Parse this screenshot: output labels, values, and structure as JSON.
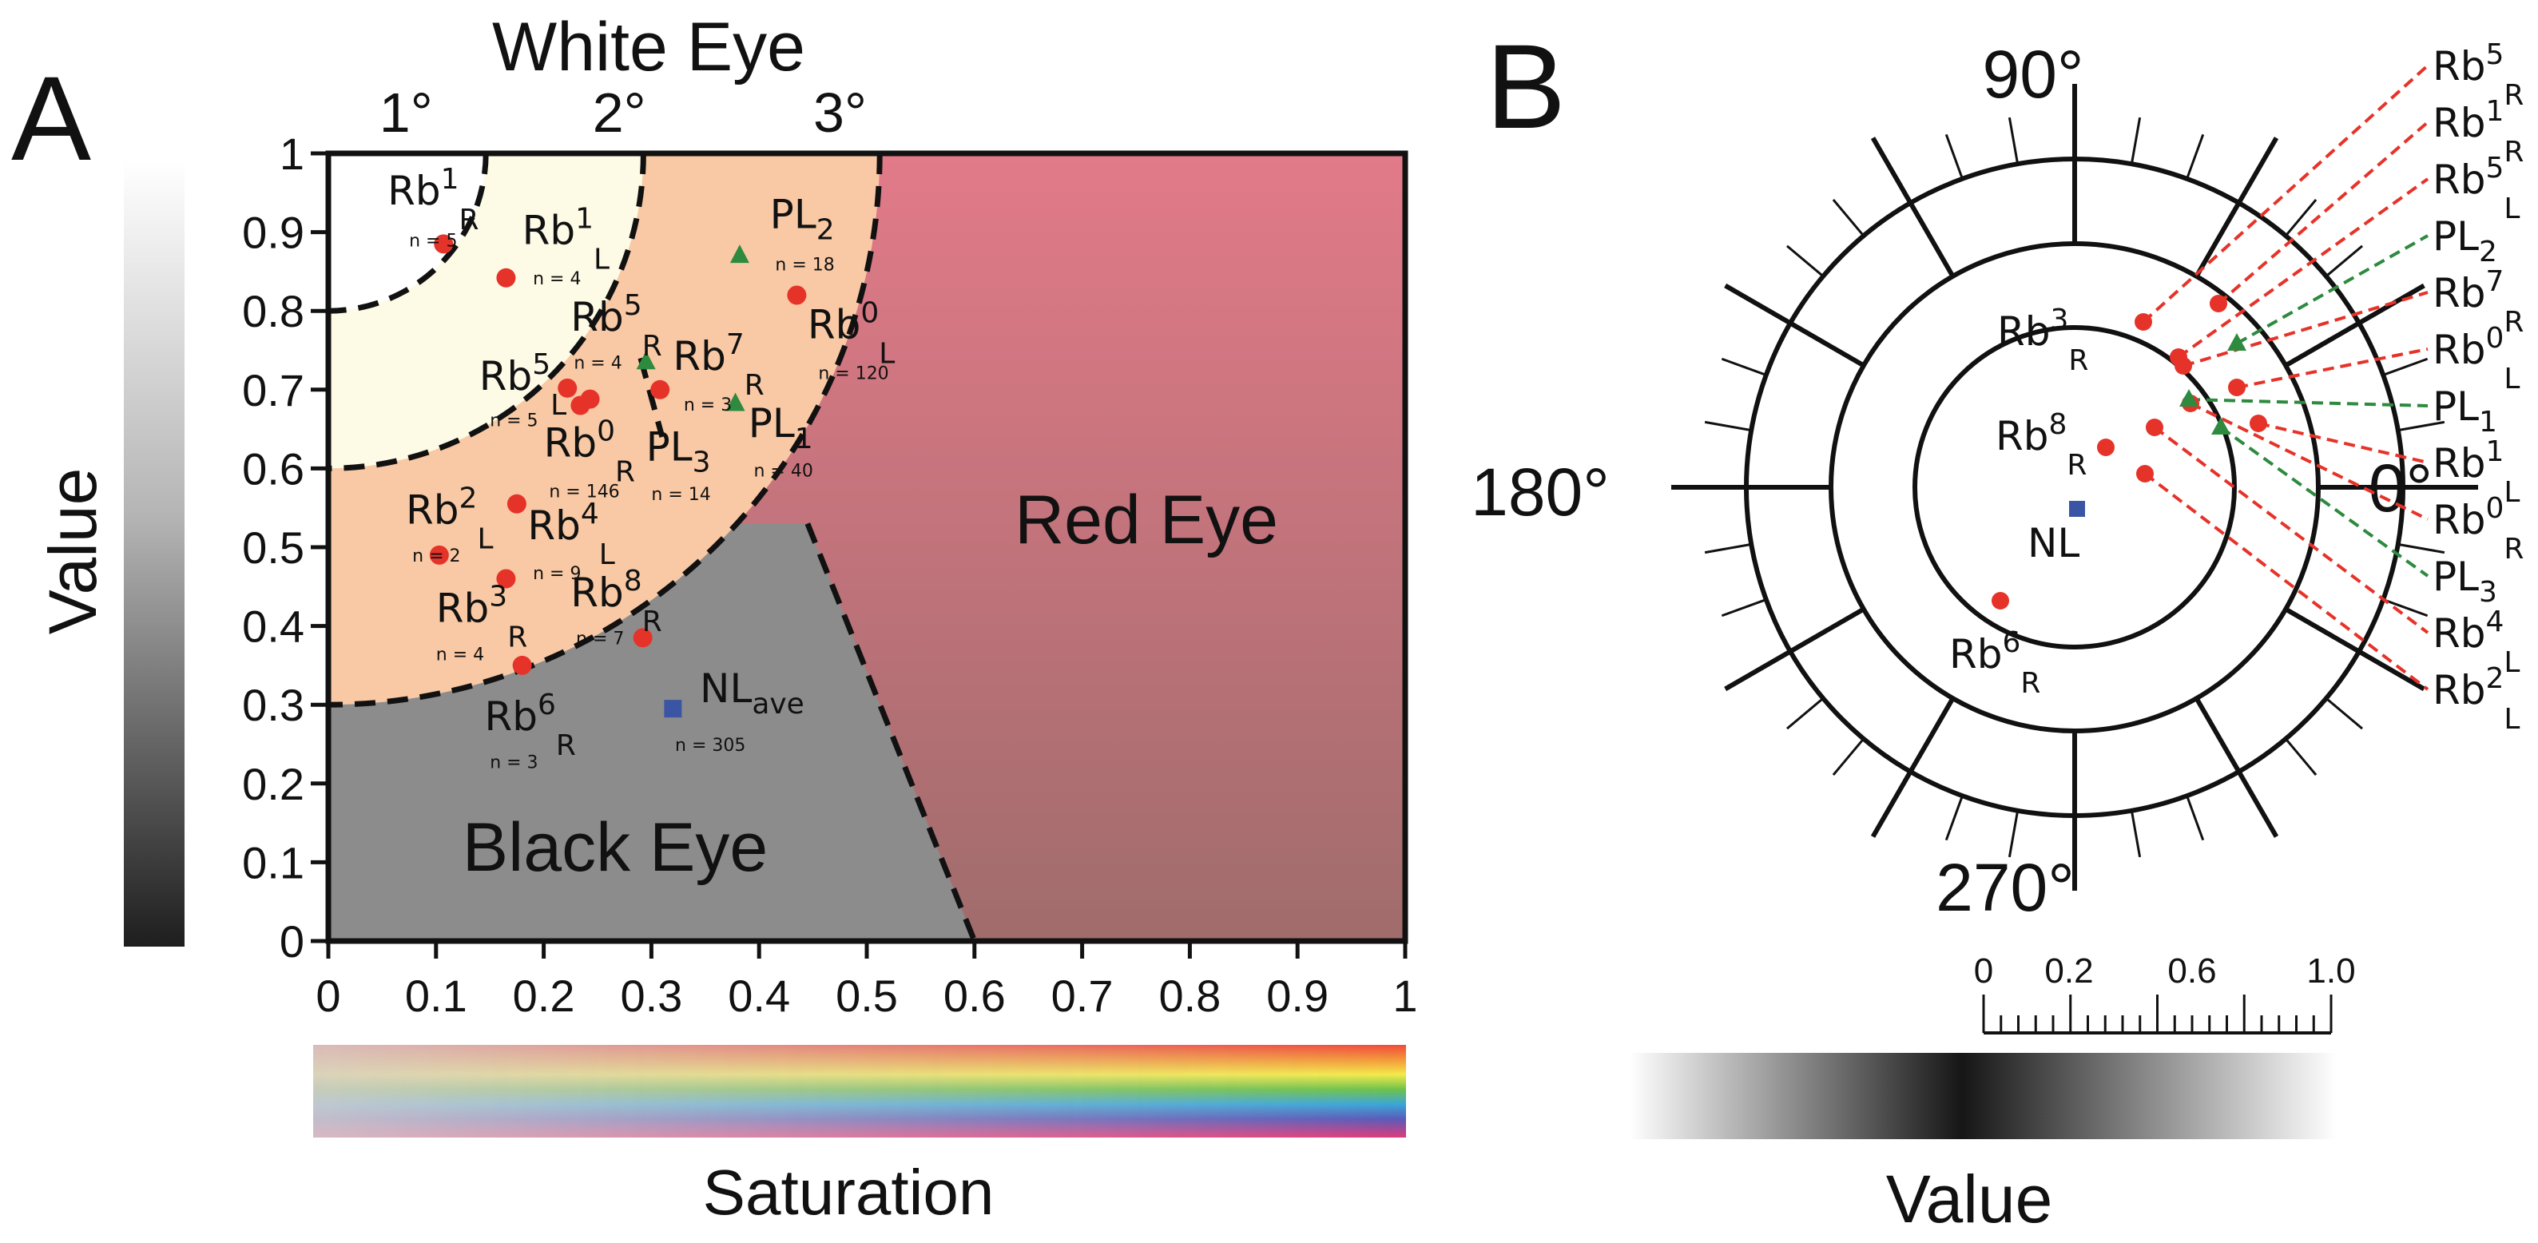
{
  "panels": [
    "A",
    "B"
  ],
  "colors": {
    "white_region": "#fdfbe6",
    "orange_region": "#f8c9a4",
    "red_top": "#e27a89",
    "red_bottom": "#a06c6c",
    "black_region": "#8c8c8c",
    "point_red": "#e6332a",
    "point_green": "#2d8a3e",
    "point_blue": "#3a55a3",
    "line_red": "#e6332a",
    "line_green": "#2d8a3e"
  },
  "chart_data": [
    {
      "type": "scatter",
      "panel": "A",
      "title": "White Eye",
      "xlabel": "Saturation",
      "ylabel": "Value",
      "xlim": [
        0,
        1
      ],
      "ylim": [
        0,
        1
      ],
      "xticks": [
        "0",
        "0.1",
        "0.2",
        "0.3",
        "0.4",
        "0.5",
        "0.6",
        "0.7",
        "0.8",
        "0.9",
        "1"
      ],
      "yticks": [
        "0",
        "0.1",
        "0.2",
        "0.3",
        "0.4",
        "0.5",
        "0.6",
        "0.7",
        "0.8",
        "0.9",
        "1"
      ],
      "degree_labels": [
        "1°",
        "2°",
        "3°"
      ],
      "regions": [
        "Red Eye",
        "Black Eye"
      ],
      "points": [
        {
          "base": "Rb",
          "sup": "1",
          "sub": "R",
          "n": "n = 5",
          "x": 0.107,
          "y": 0.885,
          "marker": "circle"
        },
        {
          "base": "Rb",
          "sup": "1",
          "sub": "L",
          "n": "n = 4",
          "x": 0.165,
          "y": 0.842,
          "marker": "circle"
        },
        {
          "base": "PL",
          "sup": "",
          "sub": "2",
          "n": "n = 18",
          "x": 0.382,
          "y": 0.87,
          "marker": "triangle"
        },
        {
          "base": "Rb",
          "sup": "0",
          "sub": "L",
          "n": "n = 120",
          "x": 0.435,
          "y": 0.82,
          "marker": "circle"
        },
        {
          "base": "Rb",
          "sup": "5",
          "sub": "R",
          "n": "n = 4",
          "x": 0.295,
          "y": 0.735,
          "marker": "triangle"
        },
        {
          "base": "Rb",
          "sup": "5",
          "sub": "L",
          "n": "n = 5",
          "x": 0.222,
          "y": 0.702,
          "marker": "circle"
        },
        {
          "base": "Rb",
          "sup": "7",
          "sub": "R",
          "n": "n = 3",
          "x": 0.308,
          "y": 0.7,
          "marker": "circle"
        },
        {
          "base": "PL",
          "sup": "",
          "sub": "1",
          "n": "n = 40",
          "x": 0.378,
          "y": 0.682,
          "marker": "triangle"
        },
        {
          "base": "Rb",
          "sup": "0",
          "sub": "R",
          "n": "n = 146",
          "x": 0.243,
          "y": 0.688,
          "marker": "circle"
        },
        {
          "base": "Rb",
          "sup": "0",
          "sub": "R",
          "n": "n = 146",
          "x": 0.234,
          "y": 0.68,
          "marker": "circle"
        },
        {
          "base": "PL",
          "sup": "",
          "sub": "3",
          "n": "n = 14",
          "x": null,
          "y": null,
          "marker": "none"
        },
        {
          "base": "Rb",
          "sup": "2",
          "sub": "L",
          "n": "n = 2",
          "x": 0.103,
          "y": 0.49,
          "marker": "circle"
        },
        {
          "base": "Rb",
          "sup": "4",
          "sub": "L",
          "n": "n = 9",
          "x": 0.175,
          "y": 0.555,
          "marker": "circle"
        },
        {
          "base": "Rb",
          "sup": "3",
          "sub": "R",
          "n": "n = 4",
          "x": 0.165,
          "y": 0.46,
          "marker": "circle"
        },
        {
          "base": "Rb",
          "sup": "8",
          "sub": "R",
          "n": "n = 7",
          "x": 0.292,
          "y": 0.385,
          "marker": "circle"
        },
        {
          "base": "Rb",
          "sup": "6",
          "sub": "R",
          "n": "n = 3",
          "x": 0.18,
          "y": 0.35,
          "marker": "circle"
        },
        {
          "base": "NL",
          "sup": "",
          "sub": "ave",
          "n": "n = 305",
          "x": 0.32,
          "y": 0.295,
          "marker": "square"
        }
      ]
    },
    {
      "type": "polar-scatter",
      "panel": "B",
      "angle_labels": [
        "90°",
        "180°",
        "0°",
        "270°"
      ],
      "scale_ticks": [
        "0",
        "0.2",
        "0.6",
        "1.0"
      ],
      "scale_label": "Value",
      "inner_labels": [
        {
          "base": "Rb",
          "sup": "3",
          "sub": "R"
        },
        {
          "base": "Rb",
          "sup": "8",
          "sub": "R"
        },
        {
          "base": "NL",
          "sup": "",
          "sub": ""
        },
        {
          "base": "Rb",
          "sup": "6",
          "sub": "R"
        }
      ],
      "legend": [
        {
          "base": "Rb",
          "sup": "5",
          "sub": "R",
          "kind": "red"
        },
        {
          "base": "Rb",
          "sup": "1",
          "sub": "R",
          "kind": "red"
        },
        {
          "base": "Rb",
          "sup": "5",
          "sub": "L",
          "kind": "red"
        },
        {
          "base": "PL",
          "sup": "",
          "sub": "2",
          "kind": "green"
        },
        {
          "base": "Rb",
          "sup": "7",
          "sub": "R",
          "kind": "red"
        },
        {
          "base": "Rb",
          "sup": "0",
          "sub": "L",
          "kind": "red"
        },
        {
          "base": "PL",
          "sup": "",
          "sub": "1",
          "kind": "green"
        },
        {
          "base": "Rb",
          "sup": "1",
          "sub": "L",
          "kind": "red"
        },
        {
          "base": "Rb",
          "sup": "0",
          "sub": "R",
          "kind": "red"
        },
        {
          "base": "PL",
          "sup": "",
          "sub": "3",
          "kind": "green"
        },
        {
          "base": "Rb",
          "sup": "4",
          "sub": "L",
          "kind": "red"
        },
        {
          "base": "Rb",
          "sup": "2",
          "sub": "L",
          "kind": "red"
        }
      ]
    }
  ]
}
